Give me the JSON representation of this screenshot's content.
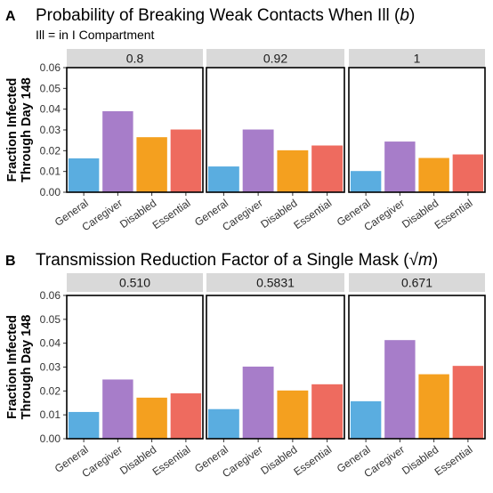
{
  "chart_data": [
    {
      "type": "bar",
      "panel_label": "A",
      "title": "Probability of Breaking Weak Contacts When Ill (b)",
      "title_main": "Probability of Breaking Weak Contacts When Ill (",
      "title_symbol": "b",
      "title_end": ")",
      "subtitle": "Ill = in I Compartment",
      "ylabel_line1": "Fraction Infected",
      "ylabel_line2": "Through Day 148",
      "ylim": [
        0,
        0.06
      ],
      "yticks": [
        "0.00",
        "0.01",
        "0.02",
        "0.03",
        "0.04",
        "0.05",
        "0.06"
      ],
      "categories": [
        "General",
        "Caregiver",
        "Disabled",
        "Essential"
      ],
      "colors": [
        "#5aade0",
        "#a77dc9",
        "#f4a01f",
        "#ee6b5f"
      ],
      "facets": [
        {
          "label": "0.8",
          "values": [
            0.0163,
            0.039,
            0.0265,
            0.0302
          ]
        },
        {
          "label": "0.92",
          "values": [
            0.0124,
            0.0302,
            0.0202,
            0.0225
          ]
        },
        {
          "label": "1",
          "values": [
            0.0102,
            0.0244,
            0.0165,
            0.0182
          ]
        }
      ]
    },
    {
      "type": "bar",
      "panel_label": "B",
      "title": "Transmission Reduction Factor of a Single Mask (√m)",
      "title_main": "Transmission Reduction Factor of a Single Mask (",
      "title_symbol": "√m",
      "title_end": ")",
      "subtitle": "",
      "ylabel_line1": "Fraction Infected",
      "ylabel_line2": "Through Day 148",
      "ylim": [
        0,
        0.06
      ],
      "yticks": [
        "0.00",
        "0.01",
        "0.02",
        "0.03",
        "0.04",
        "0.05",
        "0.06"
      ],
      "categories": [
        "General",
        "Caregiver",
        "Disabled",
        "Essential"
      ],
      "colors": [
        "#5aade0",
        "#a77dc9",
        "#f4a01f",
        "#ee6b5f"
      ],
      "facets": [
        {
          "label": "0.510",
          "values": [
            0.0112,
            0.0248,
            0.0172,
            0.019
          ]
        },
        {
          "label": "0.5831",
          "values": [
            0.0124,
            0.0302,
            0.0202,
            0.0228
          ]
        },
        {
          "label": "0.671",
          "values": [
            0.0157,
            0.0413,
            0.027,
            0.0305
          ]
        }
      ]
    }
  ]
}
